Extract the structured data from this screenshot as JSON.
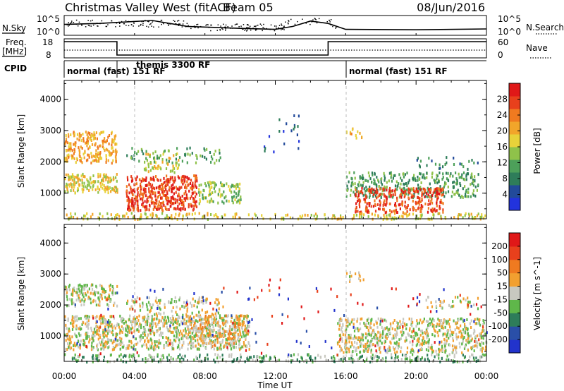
{
  "title": {
    "station": "Christmas Valley West (fitACF)",
    "beam": "Beam 05",
    "date": "08/Jun/2016"
  },
  "chart_data": [
    {
      "type": "line",
      "name": "sky-search-noise",
      "left_label": "N.Sky",
      "right_label": "N.Search",
      "left_ticks": [
        "10^5",
        "10^0"
      ],
      "right_ticks": [
        "10^5",
        "10^0"
      ],
      "sky_noise_level": [
        {
          "x": 0.0,
          "y": 0.55
        },
        {
          "x": 2.0,
          "y": 0.6
        },
        {
          "x": 3.0,
          "y": 0.65
        },
        {
          "x": 5.0,
          "y": 0.75
        },
        {
          "x": 7.0,
          "y": 0.45
        },
        {
          "x": 10.0,
          "y": 0.35
        },
        {
          "x": 12.0,
          "y": 0.3
        },
        {
          "x": 13.0,
          "y": 0.45
        },
        {
          "x": 14.0,
          "y": 0.72
        },
        {
          "x": 15.0,
          "y": 0.6
        },
        {
          "x": 16.0,
          "y": 0.3
        },
        {
          "x": 20.0,
          "y": 0.28
        },
        {
          "x": 24.0,
          "y": 0.32
        }
      ]
    },
    {
      "type": "line",
      "name": "frequency-nave",
      "left_label_1": "Freq.",
      "left_label_2": "[MHz]",
      "right_label": "Nave",
      "left_ticks": [
        "18",
        "8"
      ],
      "right_ticks": [
        "60",
        "0"
      ],
      "frequency_mhz": [
        {
          "x": 0.0,
          "y": 16.5
        },
        {
          "x": 3.0,
          "y": 16.5
        },
        {
          "x": 3.0,
          "y": 9.5
        },
        {
          "x": 15.0,
          "y": 9.5
        },
        {
          "x": 15.0,
          "y": 16.5
        },
        {
          "x": 24.0,
          "y": 16.5
        }
      ],
      "nave_dotted_level": 0.62
    },
    {
      "type": "table",
      "name": "cpid",
      "label": "CPID",
      "segments": [
        {
          "start": 0.0,
          "end": 3.0,
          "label": "normal (fast) 151 RF"
        },
        {
          "start": 3.0,
          "end": 16.0,
          "label": "themis 3300 RF"
        },
        {
          "start": 16.0,
          "end": 24.0,
          "label": "normal (fast) 151 RF"
        }
      ]
    },
    {
      "type": "heatmap",
      "name": "power",
      "ylabel": "Slant Range [km]",
      "y_ticks": [
        1000,
        2000,
        3000,
        4000
      ],
      "ylim": [
        180,
        4600
      ],
      "colorbar_label": "Power [dB]",
      "colorbar_ticks": [
        "4",
        "8",
        "12",
        "16",
        "20",
        "24",
        "28"
      ],
      "colors": [
        "#2233dd",
        "#224a9a",
        "#2e7d5a",
        "#4da05a",
        "#8fc24a",
        "#e8d23a",
        "#f2a52a",
        "#f07a20",
        "#e8401c",
        "#e01818"
      ],
      "scatter": [
        {
          "t0": 0.0,
          "t1": 3.0,
          "r0": 2000,
          "r1": 3000,
          "v": 6,
          "d": 0.6
        },
        {
          "t0": 0.0,
          "t1": 3.0,
          "r0": 1050,
          "r1": 1650,
          "v": 5,
          "d": 0.7
        },
        {
          "t0": 3.5,
          "t1": 7.5,
          "r0": 480,
          "r1": 1600,
          "v": 8,
          "d": 0.8
        },
        {
          "t0": 4.5,
          "t1": 6.5,
          "r0": 1700,
          "r1": 2300,
          "v": 5,
          "d": 0.4
        },
        {
          "t0": 7.5,
          "t1": 10.0,
          "r0": 700,
          "r1": 1400,
          "v": 4,
          "d": 0.5
        },
        {
          "t0": 3.5,
          "t1": 9.0,
          "r0": 2000,
          "r1": 2500,
          "v": 3,
          "d": 0.2
        },
        {
          "t0": 16.0,
          "t1": 23.5,
          "r0": 900,
          "r1": 1700,
          "v": 3,
          "d": 0.45
        },
        {
          "t0": 16.5,
          "t1": 21.5,
          "r0": 420,
          "r1": 1200,
          "v": 8,
          "d": 0.6
        },
        {
          "t0": 20.0,
          "t1": 23.5,
          "r0": 1800,
          "r1": 2200,
          "v": 2,
          "d": 0.15
        },
        {
          "t0": 16.0,
          "t1": 17.0,
          "r0": 2800,
          "r1": 3100,
          "v": 6,
          "d": 0.35
        },
        {
          "t0": 11.0,
          "t1": 13.5,
          "r0": 2300,
          "r1": 3600,
          "v": 1,
          "d": 0.05
        },
        {
          "t0": 0.0,
          "t1": 24.0,
          "r0": 200,
          "r1": 400,
          "v": 5,
          "d": 0.4
        }
      ]
    },
    {
      "type": "heatmap",
      "name": "velocity",
      "ylabel": "Slant Range [km]",
      "y_ticks": [
        1000,
        2000,
        3000,
        4000
      ],
      "ylim": [
        180,
        4600
      ],
      "xlabel": "Time UT",
      "x_ticks": [
        "00:00",
        "04:00",
        "08:00",
        "12:00",
        "16:00",
        "20:00",
        "00:00"
      ],
      "xlim": [
        0,
        24
      ],
      "colorbar_label": "Velocity [m s^-1]",
      "colorbar_ticks": [
        "200",
        "100",
        "50",
        "15",
        "-15",
        "-50",
        "-100",
        "-200"
      ],
      "colors": [
        "#2233cc",
        "#2a4fa8",
        "#2e7d5a",
        "#5fb74a",
        "#c8c8c0",
        "#f2a030",
        "#ef7a20",
        "#e8401c",
        "#e01818"
      ],
      "scatter": [
        {
          "t0": 0.0,
          "t1": 3.0,
          "r0": 2000,
          "r1": 2700,
          "v": 4,
          "d": 0.6
        },
        {
          "t0": 0.0,
          "t1": 10.5,
          "r0": 600,
          "r1": 1700,
          "v": 4,
          "d": 0.7
        },
        {
          "t0": 7.0,
          "t1": 10.0,
          "r0": 700,
          "r1": 1700,
          "v": 5,
          "d": 0.4
        },
        {
          "t0": 3.5,
          "t1": 9.0,
          "r0": 1700,
          "r1": 2300,
          "v": 4,
          "d": 0.3
        },
        {
          "t0": 15.5,
          "t1": 24.0,
          "r0": 500,
          "r1": 1600,
          "v": 4,
          "d": 0.6
        },
        {
          "t0": 20.5,
          "t1": 23.5,
          "r0": 1900,
          "r1": 2300,
          "v": 4,
          "d": 0.25
        },
        {
          "t0": 0.0,
          "t1": 24.0,
          "r0": 200,
          "r1": 450,
          "v": 3,
          "d": 0.45
        },
        {
          "t0": 16.0,
          "t1": 17.0,
          "r0": 2800,
          "r1": 3100,
          "v": 4,
          "d": 0.35
        },
        {
          "t0": 11.0,
          "t1": 12.5,
          "r0": 2500,
          "r1": 2900,
          "v": 7,
          "d": 0.08
        },
        {
          "t0": 0.0,
          "t1": 24.0,
          "r0": 400,
          "r1": 2600,
          "v": 0,
          "d": 0.01
        },
        {
          "t0": 0.0,
          "t1": 24.0,
          "r0": 400,
          "r1": 2600,
          "v": 8,
          "d": 0.01
        }
      ]
    }
  ]
}
